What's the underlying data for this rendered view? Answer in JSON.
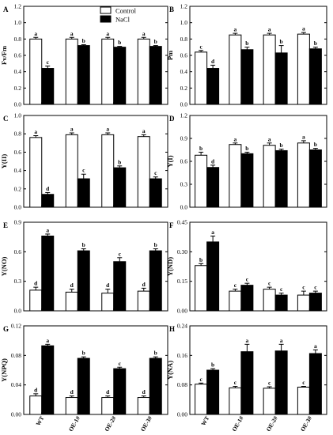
{
  "chart_data": [
    {
      "panel": "A",
      "type": "bar",
      "categories": [
        "WT",
        "OE-1#",
        "OE-2#",
        "OE-3#"
      ],
      "ylabel": "Fv/Fm",
      "ylim": [
        0,
        1.2
      ],
      "yticks": [
        0,
        0.2,
        0.4,
        0.6,
        0.8,
        1.0,
        1.2
      ],
      "tick_decimals": 1,
      "series": [
        {
          "name": "Control",
          "values": [
            0.8,
            0.8,
            0.8,
            0.8
          ],
          "errors": [
            0.02,
            0.02,
            0.02,
            0.02
          ],
          "letters": [
            "a",
            "a",
            "a",
            "a"
          ]
        },
        {
          "name": "NaCl",
          "values": [
            0.44,
            0.72,
            0.7,
            0.71
          ],
          "errors": [
            0.03,
            0.01,
            0.01,
            0.01
          ],
          "letters": [
            "c",
            "b",
            "b",
            "b"
          ]
        }
      ]
    },
    {
      "panel": "B",
      "type": "bar",
      "categories": [
        "WT",
        "OE-1#",
        "OE-2#",
        "OE-3#"
      ],
      "ylabel": "Pm",
      "ylim": [
        0,
        1.2
      ],
      "yticks": [
        0,
        0.2,
        0.4,
        0.6,
        0.8,
        1.0,
        1.2
      ],
      "tick_decimals": 1,
      "series": [
        {
          "name": "Control",
          "values": [
            0.64,
            0.85,
            0.85,
            0.86
          ],
          "errors": [
            0.02,
            0.02,
            0.02,
            0.02
          ],
          "letters": [
            "c",
            "a",
            "a",
            "a"
          ]
        },
        {
          "name": "NaCl",
          "values": [
            0.44,
            0.67,
            0.63,
            0.68
          ],
          "errors": [
            0.04,
            0.03,
            0.09,
            0.02
          ],
          "letters": [
            "d",
            "b",
            "b",
            "b"
          ]
        }
      ]
    },
    {
      "panel": "C",
      "type": "bar",
      "categories": [
        "WT",
        "OE-1#",
        "OE-2#",
        "OE-3#"
      ],
      "ylabel": "Y(II)",
      "ylim": [
        0,
        1.0
      ],
      "yticks": [
        0,
        0.2,
        0.4,
        0.6,
        0.8,
        1.0
      ],
      "tick_decimals": 1,
      "series": [
        {
          "name": "Control",
          "values": [
            0.76,
            0.79,
            0.79,
            0.77
          ],
          "errors": [
            0.02,
            0.02,
            0.02,
            0.02
          ],
          "letters": [
            "a",
            "a",
            "a",
            "a"
          ]
        },
        {
          "name": "NaCl",
          "values": [
            0.14,
            0.31,
            0.43,
            0.31
          ],
          "errors": [
            0.02,
            0.05,
            0.02,
            0.02
          ],
          "letters": [
            "d",
            "c",
            "b",
            "c"
          ]
        }
      ]
    },
    {
      "panel": "D",
      "type": "bar",
      "categories": [
        "WT",
        "OE-1#",
        "OE-2#",
        "OE-3#"
      ],
      "ylabel": "Y(I)",
      "ylim": [
        0,
        1.2
      ],
      "yticks": [
        0,
        0.3,
        0.6,
        0.9,
        1.2
      ],
      "tick_decimals": 1,
      "series": [
        {
          "name": "Control",
          "values": [
            0.68,
            0.82,
            0.81,
            0.84
          ],
          "errors": [
            0.04,
            0.02,
            0.03,
            0.03
          ],
          "letters": [
            "b",
            "a",
            "a",
            "a"
          ]
        },
        {
          "name": "NaCl",
          "values": [
            0.52,
            0.7,
            0.74,
            0.75
          ],
          "errors": [
            0.03,
            0.02,
            0.02,
            0.02
          ],
          "letters": [
            "d",
            "b",
            "b",
            "b"
          ]
        }
      ]
    },
    {
      "panel": "E",
      "type": "bar",
      "categories": [
        "WT",
        "OE-1#",
        "OE-2#",
        "OE-3#"
      ],
      "ylabel": "Y(NO)",
      "ylim": [
        0,
        0.9
      ],
      "yticks": [
        0,
        0.3,
        0.6,
        0.9
      ],
      "tick_decimals": 1,
      "series": [
        {
          "name": "Control",
          "values": [
            0.21,
            0.19,
            0.18,
            0.2
          ],
          "errors": [
            0.03,
            0.03,
            0.04,
            0.03
          ],
          "letters": [
            "d",
            "d",
            "d",
            "d"
          ]
        },
        {
          "name": "NaCl",
          "values": [
            0.76,
            0.61,
            0.5,
            0.61
          ],
          "errors": [
            0.02,
            0.02,
            0.04,
            0.02
          ],
          "letters": [
            "a",
            "b",
            "c",
            "b"
          ]
        }
      ]
    },
    {
      "panel": "F",
      "type": "bar",
      "categories": [
        "WT",
        "OE-1#",
        "OE-2#",
        "OE-3#"
      ],
      "ylabel": "Y(ND)",
      "ylim": [
        0,
        0.45
      ],
      "yticks": [
        0,
        0.15,
        0.3,
        0.45
      ],
      "tick_decimals": 2,
      "series": [
        {
          "name": "Control",
          "values": [
            0.23,
            0.1,
            0.11,
            0.08
          ],
          "errors": [
            0.01,
            0.01,
            0.01,
            0.02
          ],
          "letters": [
            "b",
            "c",
            "c",
            "c"
          ]
        },
        {
          "name": "NaCl",
          "values": [
            0.35,
            0.13,
            0.08,
            0.09
          ],
          "errors": [
            0.03,
            0.01,
            0.01,
            0.01
          ],
          "letters": [
            "a",
            "c",
            "c",
            "c"
          ]
        }
      ]
    },
    {
      "panel": "G",
      "type": "bar",
      "categories": [
        "WT",
        "OE-1#",
        "OE-2#",
        "OE-3#"
      ],
      "ylabel": "Y(NPQ)",
      "ylim": [
        0,
        0.12
      ],
      "yticks": [
        0,
        0.04,
        0.08,
        0.12
      ],
      "tick_decimals": 2,
      "series": [
        {
          "name": "Control",
          "values": [
            0.025,
            0.023,
            0.023,
            0.023
          ],
          "errors": [
            0.003,
            0.002,
            0.002,
            0.002
          ],
          "letters": [
            "d",
            "d",
            "d",
            "d"
          ]
        },
        {
          "name": "NaCl",
          "values": [
            0.093,
            0.076,
            0.062,
            0.076
          ],
          "errors": [
            0.002,
            0.002,
            0.002,
            0.002
          ],
          "letters": [
            "a",
            "b",
            "c",
            "b"
          ]
        }
      ]
    },
    {
      "panel": "H",
      "type": "bar",
      "categories": [
        "WT",
        "OE-1#",
        "OE-2#",
        "OE-3#"
      ],
      "ylabel": "Y(NA)",
      "ylim": [
        0,
        0.24
      ],
      "yticks": [
        0,
        0.08,
        0.16,
        0.24
      ],
      "tick_decimals": 2,
      "series": [
        {
          "name": "Control",
          "values": [
            0.082,
            0.072,
            0.071,
            0.074
          ],
          "errors": [
            0.003,
            0.004,
            0.004,
            0.002
          ],
          "letters": [
            "c",
            "c",
            "c",
            "c"
          ]
        },
        {
          "name": "NaCl",
          "values": [
            0.12,
            0.17,
            0.172,
            0.165
          ],
          "errors": [
            0.004,
            0.02,
            0.018,
            0.01
          ],
          "letters": [
            "b",
            "a",
            "a",
            "a"
          ]
        }
      ]
    }
  ],
  "legend": {
    "items": [
      {
        "name": "Control",
        "color": "#ffffff"
      },
      {
        "name": "NaCl",
        "color": "#000000"
      }
    ]
  },
  "colors": {
    "control": "#ffffff",
    "nacl": "#000000",
    "axis": "#000000"
  }
}
